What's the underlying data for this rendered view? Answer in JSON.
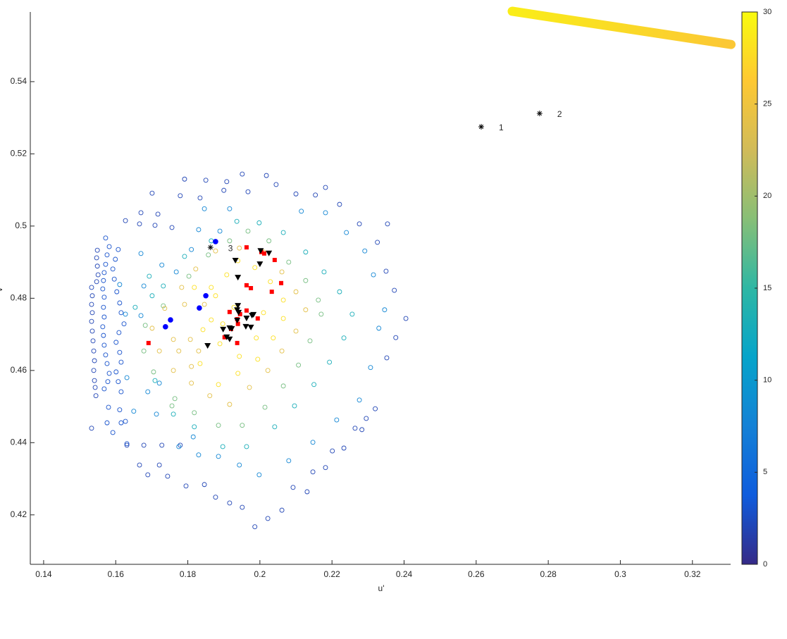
{
  "chart_data": {
    "type": "scatter",
    "xlabel": "u'",
    "ylabel": "v'",
    "xlim": [
      0.1363,
      0.3306
    ],
    "ylim": [
      0.4063,
      0.5593
    ],
    "xticks": [
      0.14,
      0.16,
      0.18,
      0.2,
      0.22,
      0.24,
      0.26,
      0.28,
      0.3,
      0.32
    ],
    "yticks": [
      0.42,
      0.44,
      0.46,
      0.48,
      0.5,
      0.52,
      0.54
    ],
    "clim": [
      0,
      30
    ],
    "cticks": [
      0,
      5,
      10,
      15,
      20,
      25,
      30
    ],
    "colormap": [
      "#352a87",
      "#0f5cdd",
      "#1481d6",
      "#06a4ca",
      "#2eb7a4",
      "#87bf77",
      "#d1bb59",
      "#fec832",
      "#f9fb0e"
    ],
    "series": [
      {
        "marker": "circle-open",
        "x": [
          0.1533,
          0.1535,
          0.1533,
          0.1535,
          0.1533,
          0.1535,
          0.1537,
          0.1539,
          0.1541,
          0.1539,
          0.1541,
          0.1543,
          0.1545,
          0.1533,
          0.1549,
          0.1547,
          0.1549,
          0.1551,
          0.1547,
          0.1572,
          0.1582,
          0.1576,
          0.1572,
          0.1568,
          0.1566,
          0.1564,
          0.1568,
          0.1566,
          0.1568,
          0.1564,
          0.1566,
          0.1568,
          0.1572,
          0.1576,
          0.1582,
          0.1578,
          0.1568,
          0.158,
          0.1576,
          0.1592,
          0.1607,
          0.1599,
          0.1592,
          0.1596,
          0.1603,
          0.1611,
          0.1615,
          0.1623,
          0.1609,
          0.1601,
          0.1611,
          0.1615,
          0.1601,
          0.1607,
          0.1615,
          0.1611,
          0.1615,
          0.1627,
          0.1631,
          0.1627,
          0.1666,
          0.1709,
          0.1756,
          0.167,
          0.1717,
          0.1701,
          0.1791,
          0.185,
          0.1908,
          0.1951,
          0.2018,
          0.1779,
          0.1834,
          0.19,
          0.1967,
          0.2045,
          0.21,
          0.2154,
          0.2182,
          0.2221,
          0.2276,
          0.2326,
          0.2354,
          0.235,
          0.2373,
          0.2405,
          0.2377,
          0.2352,
          0.232,
          0.2283,
          0.2233,
          0.2182,
          0.2131,
          0.2061,
          0.1986,
          0.1951,
          0.1877,
          0.1846,
          0.1795,
          0.1744,
          0.1689,
          0.1666,
          0.1721,
          0.1631,
          0.1678,
          0.1728,
          0.1779,
          0.2022,
          0.2092,
          0.2147,
          0.2201,
          0.2264,
          0.2295,
          0.1916,
          0.1768,
          0.1728,
          0.167,
          0.181,
          0.183,
          0.1889,
          0.1846,
          0.1916,
          0.2115,
          0.2182,
          0.224,
          0.2291,
          0.2315,
          0.2346,
          0.233,
          0.2307,
          0.2276,
          0.2213,
          0.2147,
          0.208,
          0.1998,
          0.1943,
          0.1885,
          0.183,
          0.1775,
          0.1627,
          0.167,
          0.1611,
          0.1678,
          0.1631,
          0.1689,
          0.165,
          0.1713,
          0.1721,
          0.1815,
          0.1936,
          0.1998,
          0.2065,
          0.2127,
          0.2178,
          0.2221,
          0.2256,
          0.2233,
          0.2193,
          0.215,
          0.2096,
          0.2041,
          0.1963,
          0.1897,
          0.1818,
          0.176,
          0.1709,
          0.1654,
          0.1701,
          0.1732,
          0.1791,
          0.1865,
          0.1693,
          0.1967,
          0.2025,
          0.208,
          0.2127,
          0.2162,
          0.217,
          0.2139,
          0.2107,
          0.2065,
          0.2014,
          0.1951,
          0.1885,
          0.1818,
          0.1764,
          0.1705,
          0.1678,
          0.1682,
          0.1732,
          0.1803,
          0.1857,
          0.1916,
          0.1756,
          0.1943,
          0.201,
          0.2061,
          0.21,
          0.2127,
          0.21,
          0.2061,
          0.2022,
          0.1971,
          0.1916,
          0.1861,
          0.181,
          0.176,
          0.1721,
          0.1701,
          0.1736,
          0.1783,
          0.1822,
          0.1877,
          0.176,
          0.1807,
          0.1775,
          0.183,
          0.181,
          0.1791,
          0.1846,
          0.1939,
          0.1986,
          0.2029,
          0.2065,
          0.2065,
          0.2037,
          0.1994,
          0.1939,
          0.1885,
          0.1834,
          0.1889,
          0.1865,
          0.1877,
          0.1908,
          0.201,
          0.199,
          0.1943,
          0.1897,
          0.1928,
          0.1865,
          0.1818,
          0.1842
        ],
        "y": [
          0.483,
          0.4807,
          0.4783,
          0.476,
          0.4736,
          0.4709,
          0.4682,
          0.4654,
          0.4627,
          0.46,
          0.4572,
          0.4553,
          0.453,
          0.444,
          0.4933,
          0.4912,
          0.4889,
          0.4865,
          0.4846,
          0.4967,
          0.4943,
          0.492,
          0.4894,
          0.4871,
          0.4849,
          0.4826,
          0.4803,
          0.4775,
          0.4748,
          0.4721,
          0.4697,
          0.467,
          0.4643,
          0.4619,
          0.4592,
          0.4569,
          0.4549,
          0.4498,
          0.4455,
          0.4428,
          0.4935,
          0.4908,
          0.4881,
          0.4853,
          0.4818,
          0.4787,
          0.476,
          0.4729,
          0.4705,
          0.4678,
          0.465,
          0.4623,
          0.4596,
          0.4569,
          0.4541,
          0.4491,
          0.4455,
          0.4459,
          0.4397,
          0.5015,
          0.5006,
          0.5002,
          0.4996,
          0.5037,
          0.5033,
          0.5091,
          0.513,
          0.5127,
          0.5123,
          0.5144,
          0.514,
          0.5084,
          0.5078,
          0.5099,
          0.5095,
          0.5115,
          0.5089,
          0.5086,
          0.5107,
          0.506,
          0.5006,
          0.4955,
          0.5006,
          0.4875,
          0.4822,
          0.4744,
          0.4691,
          0.4635,
          0.4494,
          0.4436,
          0.4385,
          0.4331,
          0.4264,
          0.4213,
          0.4167,
          0.4221,
          0.4249,
          0.4284,
          0.428,
          0.4307,
          0.4311,
          0.4338,
          0.4338,
          0.4393,
          0.4393,
          0.4393,
          0.4393,
          0.419,
          0.4276,
          0.4319,
          0.4377,
          0.444,
          0.4467,
          0.4233,
          0.4873,
          0.4892,
          0.4924,
          0.4935,
          0.499,
          0.4986,
          0.5048,
          0.5048,
          0.5041,
          0.5037,
          0.4982,
          0.4931,
          0.4865,
          0.4768,
          0.4717,
          0.4608,
          0.4518,
          0.4463,
          0.4401,
          0.435,
          0.4311,
          0.4338,
          0.4362,
          0.4366,
          0.4389,
          0.4756,
          0.4752,
          0.4838,
          0.4834,
          0.458,
          0.4541,
          0.4487,
          0.4479,
          0.4565,
          0.4416,
          0.5013,
          0.5009,
          0.4982,
          0.4928,
          0.4873,
          0.4818,
          0.4756,
          0.469,
          0.4623,
          0.4561,
          0.4502,
          0.4444,
          0.4389,
          0.4389,
          0.4444,
          0.4479,
          0.4572,
          0.4775,
          0.4807,
          0.4834,
          0.4916,
          0.4959,
          0.4861,
          0.4986,
          0.4959,
          0.49,
          0.4849,
          0.4795,
          0.4756,
          0.4682,
          0.4615,
          0.4557,
          0.4498,
          0.4448,
          0.4448,
          0.4483,
          0.4522,
          0.4596,
          0.4654,
          0.4725,
          0.4779,
          0.4861,
          0.492,
          0.4959,
          0.4502,
          0.4939,
          0.4928,
          0.4873,
          0.4818,
          0.4768,
          0.4709,
          0.4654,
          0.46,
          0.4553,
          0.4506,
          0.453,
          0.4565,
          0.46,
          0.4654,
          0.4717,
          0.4772,
          0.483,
          0.4881,
          0.4931,
          0.4686,
          0.4686,
          0.4654,
          0.4654,
          0.4611,
          0.4783,
          0.4783,
          0.4904,
          0.4885,
          0.4846,
          0.4795,
          0.4744,
          0.469,
          0.4631,
          0.4592,
          0.4561,
          0.4619,
          0.4674,
          0.474,
          0.4807,
          0.4865,
          0.476,
          0.469,
          0.4639,
          0.4729,
          0.4775,
          0.483,
          0.483,
          0.4713
        ],
        "c": [
          2,
          2,
          2,
          2,
          2,
          2,
          2,
          2,
          2,
          2,
          2,
          2,
          2,
          2,
          2,
          2,
          2,
          2,
          2,
          3,
          3,
          3,
          3,
          3,
          3,
          3,
          3,
          3,
          3,
          3,
          3,
          3,
          3,
          3,
          3,
          3,
          3,
          3,
          3,
          3,
          3,
          3,
          3,
          3,
          3,
          3,
          3,
          3,
          3,
          3,
          3,
          3,
          3,
          3,
          3,
          3,
          3,
          3,
          3,
          2,
          2,
          2,
          2,
          2,
          2,
          2,
          2,
          2,
          2,
          2,
          2,
          2,
          2,
          2,
          2,
          2,
          2,
          2,
          2,
          2,
          2,
          2,
          2,
          2,
          2,
          2,
          2,
          2,
          2,
          2,
          2,
          2,
          2,
          2,
          2,
          2,
          2,
          2,
          2,
          2,
          2,
          2,
          2,
          2,
          2,
          2,
          2,
          2,
          2,
          2,
          2,
          2,
          2,
          2,
          8,
          8,
          8,
          8,
          8,
          8,
          8,
          8,
          8,
          8,
          8,
          8,
          8,
          8,
          8,
          8,
          8,
          8,
          8,
          8,
          8,
          8,
          8,
          8,
          8,
          8,
          8,
          8,
          8,
          8,
          8,
          8,
          8,
          8,
          8,
          13,
          13,
          13,
          13,
          13,
          13,
          13,
          13,
          13,
          13,
          13,
          13,
          13,
          13,
          13,
          13,
          13,
          13,
          13,
          13,
          13,
          13,
          13,
          18,
          18,
          18,
          18,
          18,
          18,
          18,
          18,
          18,
          18,
          18,
          18,
          18,
          18,
          18,
          18,
          18,
          18,
          18,
          18,
          18,
          18,
          24,
          24,
          24,
          24,
          24,
          24,
          24,
          24,
          24,
          24,
          24,
          24,
          24,
          24,
          24,
          24,
          24,
          24,
          24,
          24,
          24,
          24,
          24,
          24,
          24,
          24,
          28,
          28,
          28,
          28,
          28,
          28,
          28,
          28,
          28,
          28,
          28,
          28,
          28,
          28,
          28,
          28,
          28,
          28,
          28,
          28,
          28,
          28
        ]
      },
      {
        "marker": "circle-filled",
        "color": "#0000ff",
        "x": [
          0.1877,
          0.185,
          0.1832,
          0.1752,
          0.1738
        ],
        "y": [
          0.4957,
          0.4807,
          0.4773,
          0.474,
          0.4721
        ]
      },
      {
        "marker": "square",
        "color": "#ff0000",
        "x": [
          0.1963,
          0.2004,
          0.2012,
          0.2041,
          0.2059,
          0.1963,
          0.1975,
          0.2033,
          0.1916,
          0.1945,
          0.1963,
          0.1937,
          0.1994,
          0.1939,
          0.192,
          0.1902,
          0.1937,
          0.1691
        ],
        "y": [
          0.4941,
          0.4928,
          0.4924,
          0.4906,
          0.4842,
          0.4836,
          0.4828,
          0.4818,
          0.4762,
          0.4756,
          0.4766,
          0.4742,
          0.4744,
          0.4729,
          0.4715,
          0.4692,
          0.4676,
          0.4676
        ]
      },
      {
        "marker": "triangle-down",
        "color": "#000000",
        "x": [
          0.1932,
          0.1939,
          0.2002,
          0.2025,
          0.2,
          0.1939,
          0.1937,
          0.1941,
          0.1978,
          0.1963,
          0.1982,
          0.1937,
          0.1916,
          0.1898,
          0.1922,
          0.1961,
          0.1975,
          0.1908,
          0.1916,
          0.1855
        ],
        "y": [
          0.4904,
          0.4857,
          0.4931,
          0.4924,
          0.4894,
          0.4779,
          0.4767,
          0.476,
          0.4752,
          0.4744,
          0.4754,
          0.4738,
          0.4717,
          0.4713,
          0.4715,
          0.4721,
          0.4719,
          0.4692,
          0.4686,
          0.4668
        ]
      },
      {
        "marker": "asterisk",
        "color": "#000000",
        "x": [
          0.2614,
          0.2776,
          0.1863
        ],
        "y": [
          0.5275,
          0.5312,
          0.4941
        ],
        "labels": [
          "1",
          "2",
          "3"
        ]
      },
      {
        "marker": "line",
        "x": [
          0.27,
          0.3307
        ],
        "y": [
          0.5595,
          0.5503
        ],
        "c": [
          29,
          26
        ]
      }
    ]
  }
}
